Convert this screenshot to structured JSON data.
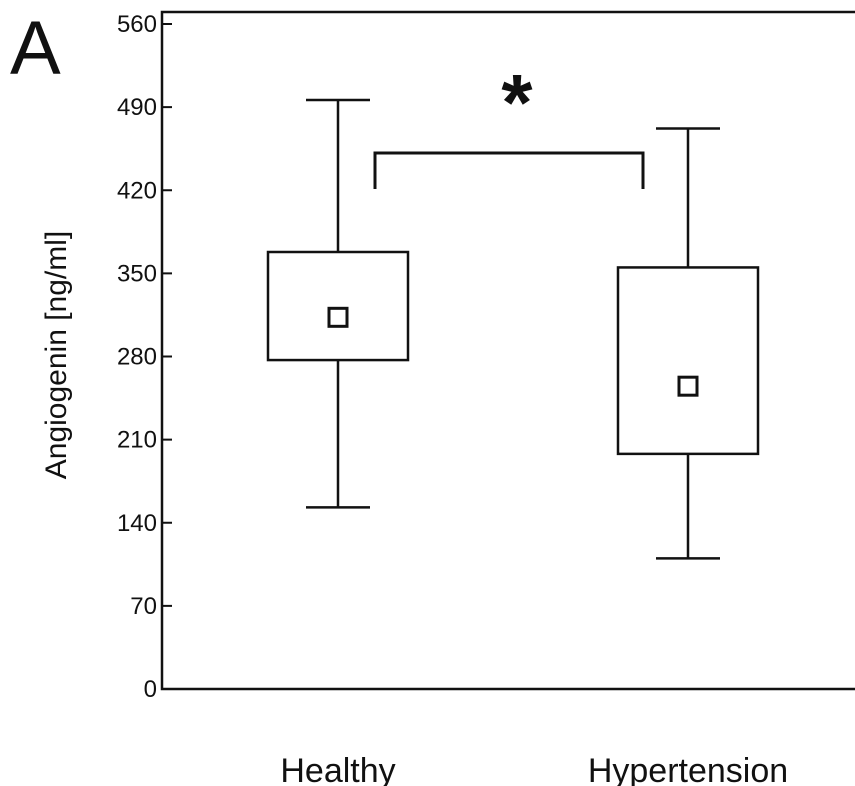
{
  "panel_label": "A",
  "chart_data": {
    "type": "box",
    "title": "",
    "xlabel": "",
    "ylabel": "Angiogenin [ng/ml]",
    "ylim": [
      0,
      560
    ],
    "yticks": [
      0,
      70,
      140,
      210,
      280,
      350,
      420,
      490,
      560
    ],
    "categories": [
      "Healthy",
      "Hypertension"
    ],
    "boxes": [
      {
        "category": "Healthy",
        "whisker_low": 153,
        "q1": 277,
        "mean": 313,
        "q3": 368,
        "whisker_high": 496
      },
      {
        "category": "Hypertension",
        "whisker_low": 110,
        "q1": 198,
        "mean": 255,
        "q3": 355,
        "whisker_high": 472
      }
    ],
    "significance": {
      "between": [
        "Healthy",
        "Hypertension"
      ],
      "label": "*"
    },
    "grid": false,
    "legend": "none"
  }
}
